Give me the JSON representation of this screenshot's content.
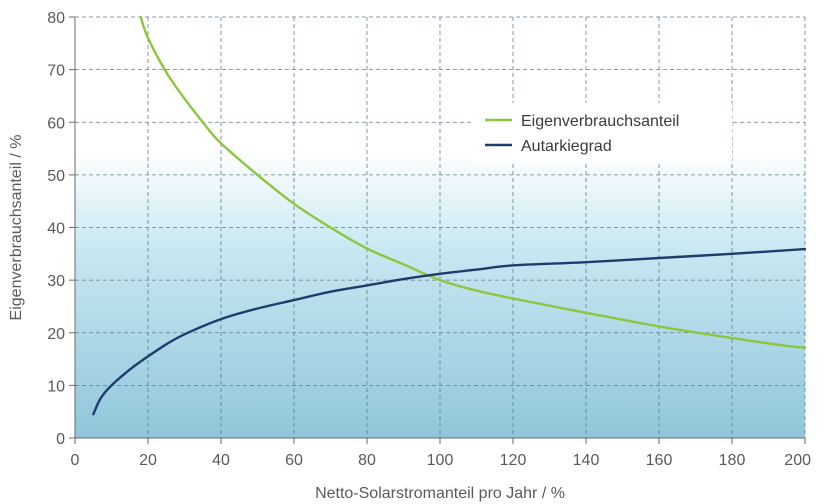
{
  "chart_data": {
    "type": "line",
    "title": "",
    "xlabel": "Netto-Solarstromanteil pro Jahr / %",
    "ylabel": "Eigenverbrauchsanteil / %",
    "xlim": [
      0,
      200
    ],
    "ylim": [
      0,
      80
    ],
    "xticks": [
      0,
      20,
      40,
      60,
      80,
      100,
      120,
      140,
      160,
      180,
      200
    ],
    "yticks": [
      0,
      10,
      20,
      30,
      40,
      50,
      60,
      70,
      80
    ],
    "grid": true,
    "legend_position": "top-right",
    "series": [
      {
        "name": "Eigenverbrauchsanteil",
        "color": "#8cc63f",
        "x": [
          18,
          20,
          25,
          30,
          35,
          40,
          50,
          60,
          70,
          80,
          90,
          100,
          110,
          120,
          140,
          160,
          180,
          195,
          200
        ],
        "y": [
          80,
          76,
          69.5,
          64.5,
          60,
          56,
          50,
          44.5,
          40,
          36,
          33,
          30,
          28,
          26.5,
          23.8,
          21.2,
          19,
          17.5,
          17.2
        ]
      },
      {
        "name": "Autarkiegrad",
        "color": "#1f3c6e",
        "x": [
          5,
          7,
          10,
          15,
          20,
          25,
          30,
          40,
          50,
          60,
          70,
          80,
          90,
          100,
          110,
          120,
          140,
          160,
          180,
          200
        ],
        "y": [
          4.5,
          7.5,
          10,
          13,
          15.5,
          17.8,
          19.7,
          22.6,
          24.6,
          26.2,
          27.8,
          29,
          30.2,
          31.2,
          32,
          32.8,
          33.4,
          34.2,
          35,
          35.9
        ]
      }
    ]
  }
}
